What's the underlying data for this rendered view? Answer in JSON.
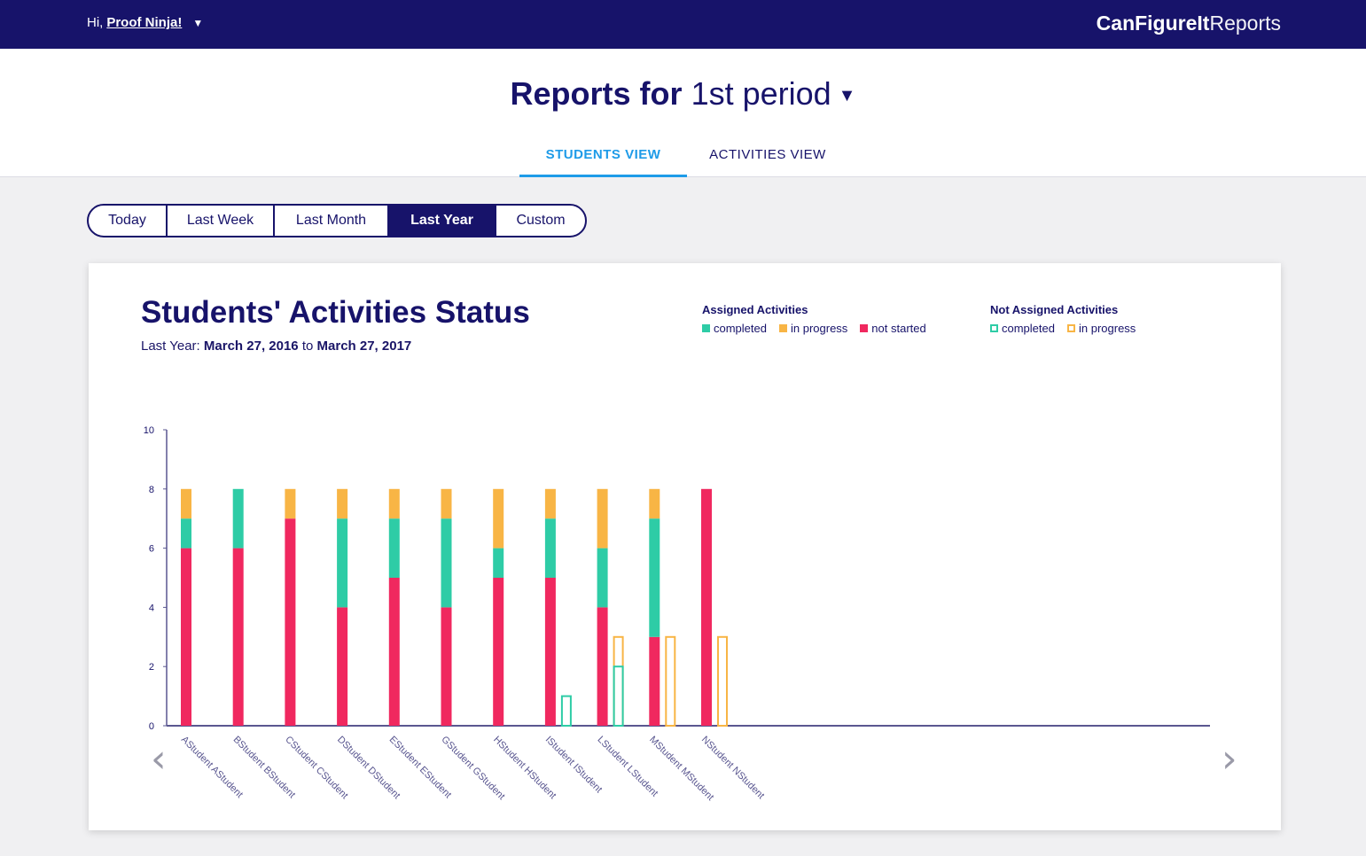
{
  "topbar": {
    "greeting_prefix": "Hi,",
    "user_name": "Proof Ninja!",
    "caret": "▼",
    "brand_bold": "CanFigureIt",
    "brand_light": "Reports"
  },
  "header": {
    "title_prefix": "Reports for",
    "period": "1st period",
    "caret": "▼",
    "tabs": [
      {
        "label": "STUDENTS VIEW",
        "active": true
      },
      {
        "label": "ACTIVITIES VIEW",
        "active": false
      }
    ]
  },
  "range_selector": {
    "options": [
      "Today",
      "Last Week",
      "Last Month",
      "Last Year",
      "Custom"
    ],
    "selected": "Last Year"
  },
  "card": {
    "title": "Students' Activities Status",
    "subtitle_prefix": "Last Year:",
    "date_from": "March 27, 2016",
    "date_sep": "to",
    "date_to": "March 27, 2017",
    "nav_prev": "‹",
    "nav_next": "›"
  },
  "legend": {
    "assigned_title": "Assigned Activities",
    "assigned_items": [
      "completed",
      "in progress",
      "not started"
    ],
    "not_assigned_title": "Not Assigned Activities",
    "not_assigned_items": [
      "completed",
      "in progress"
    ]
  },
  "colors": {
    "navy": "#17136a",
    "completed": "#2ecca6",
    "in_progress": "#f8b545",
    "not_started": "#f0285f",
    "tab_active": "#1e9be8"
  },
  "chart_data": {
    "type": "bar",
    "stacked": true,
    "title": "Students' Activities Status",
    "xlabel": "",
    "ylabel": "",
    "ylim": [
      0,
      10
    ],
    "yticks": [
      0,
      2,
      4,
      6,
      8,
      10
    ],
    "categories": [
      "AStudent AStudent",
      "BStudent BStudent",
      "CStudent CStudent",
      "DStudent DStudent",
      "EStudent EStudent",
      "GStudent GStudent",
      "HStudent HStudent",
      "IStudent IStudent",
      "LStudent LStudent",
      "MStudent MStudent",
      "NStudent NStudent"
    ],
    "series": [
      {
        "name": "not started",
        "group": "Assigned Activities",
        "values": [
          6,
          6,
          7,
          4,
          5,
          4,
          5,
          5,
          4,
          3,
          8
        ]
      },
      {
        "name": "completed",
        "group": "Assigned Activities",
        "values": [
          1,
          2,
          0,
          3,
          2,
          3,
          1,
          2,
          2,
          4,
          0
        ]
      },
      {
        "name": "in progress",
        "group": "Assigned Activities",
        "values": [
          1,
          0,
          1,
          1,
          1,
          1,
          2,
          1,
          2,
          1,
          0
        ]
      },
      {
        "name": "completed",
        "group": "Not Assigned Activities",
        "values": [
          0,
          0,
          0,
          0,
          0,
          0,
          0,
          1,
          2,
          0,
          0
        ]
      },
      {
        "name": "in progress",
        "group": "Not Assigned Activities",
        "values": [
          0,
          0,
          0,
          0,
          0,
          0,
          0,
          0,
          3,
          3,
          3
        ]
      }
    ],
    "grid": false,
    "legend_position": "top-right"
  }
}
